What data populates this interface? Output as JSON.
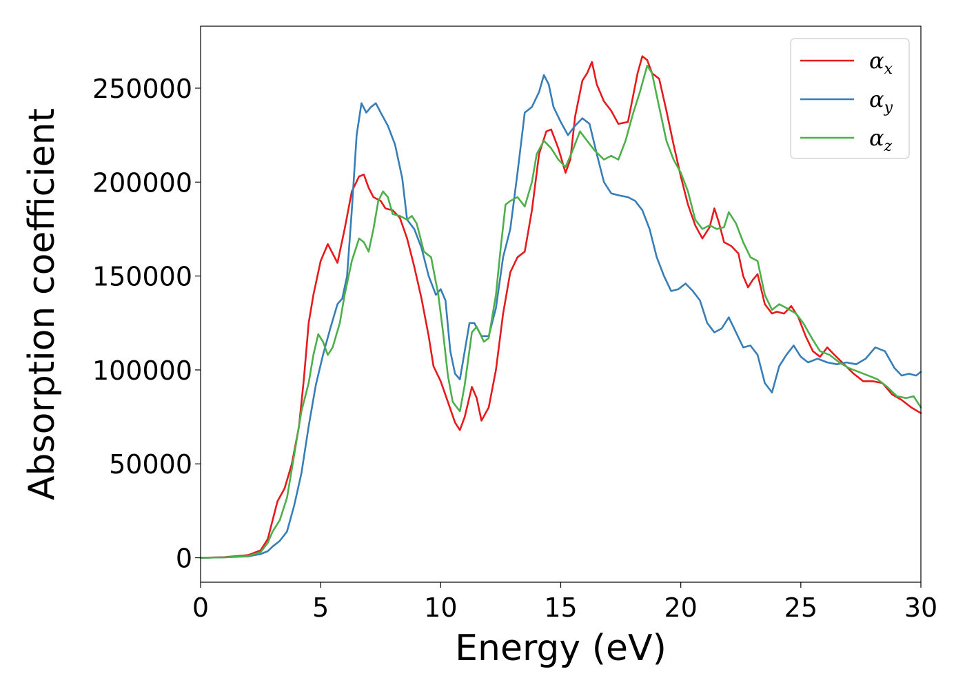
{
  "chart_data": {
    "type": "line",
    "xlabel": "Energy (eV)",
    "ylabel": "Absorption coefficient",
    "xlim": [
      0,
      30
    ],
    "ylim": [
      -13000,
      283000
    ],
    "xticks": [
      0,
      5,
      10,
      15,
      20,
      25,
      30
    ],
    "xtick_labels": [
      "0",
      "5",
      "10",
      "15",
      "20",
      "25",
      "30"
    ],
    "yticks": [
      0,
      50000,
      100000,
      150000,
      200000,
      250000
    ],
    "ytick_labels": [
      "0",
      "50000",
      "100000",
      "150000",
      "200000",
      "250000"
    ],
    "grid": false,
    "legend_position": "top-right",
    "series": [
      {
        "name": "α",
        "name_sub": "x",
        "color": "#e41a1c",
        "points": [
          [
            0,
            0
          ],
          [
            1,
            300
          ],
          [
            2,
            1500
          ],
          [
            2.5,
            4000
          ],
          [
            2.8,
            10000
          ],
          [
            3.0,
            20000
          ],
          [
            3.2,
            30000
          ],
          [
            3.5,
            37000
          ],
          [
            3.8,
            50000
          ],
          [
            4.1,
            70000
          ],
          [
            4.3,
            95000
          ],
          [
            4.5,
            125000
          ],
          [
            4.7,
            140000
          ],
          [
            5.0,
            158000
          ],
          [
            5.3,
            167000
          ],
          [
            5.5,
            162000
          ],
          [
            5.7,
            157000
          ],
          [
            6.0,
            175000
          ],
          [
            6.3,
            195000
          ],
          [
            6.6,
            203000
          ],
          [
            6.8,
            204000
          ],
          [
            7.0,
            197000
          ],
          [
            7.2,
            192000
          ],
          [
            7.5,
            190000
          ],
          [
            7.7,
            186000
          ],
          [
            8.0,
            185000
          ],
          [
            8.3,
            181000
          ],
          [
            8.6,
            170000
          ],
          [
            8.9,
            155000
          ],
          [
            9.2,
            138000
          ],
          [
            9.5,
            118000
          ],
          [
            9.7,
            102000
          ],
          [
            10.0,
            94000
          ],
          [
            10.3,
            83000
          ],
          [
            10.6,
            72000
          ],
          [
            10.8,
            68000
          ],
          [
            11.0,
            75000
          ],
          [
            11.3,
            91000
          ],
          [
            11.5,
            85000
          ],
          [
            11.7,
            73000
          ],
          [
            12.0,
            80000
          ],
          [
            12.3,
            100000
          ],
          [
            12.6,
            130000
          ],
          [
            12.9,
            152000
          ],
          [
            13.2,
            160000
          ],
          [
            13.5,
            163000
          ],
          [
            13.8,
            185000
          ],
          [
            14.1,
            215000
          ],
          [
            14.4,
            227000
          ],
          [
            14.6,
            228000
          ],
          [
            14.9,
            218000
          ],
          [
            15.2,
            205000
          ],
          [
            15.4,
            212000
          ],
          [
            15.6,
            235000
          ],
          [
            15.9,
            254000
          ],
          [
            16.1,
            258000
          ],
          [
            16.3,
            264000
          ],
          [
            16.5,
            252000
          ],
          [
            16.8,
            243000
          ],
          [
            17.1,
            238000
          ],
          [
            17.4,
            231000
          ],
          [
            17.8,
            232000
          ],
          [
            18.0,
            245000
          ],
          [
            18.2,
            258000
          ],
          [
            18.4,
            267000
          ],
          [
            18.6,
            265000
          ],
          [
            18.8,
            258000
          ],
          [
            19.1,
            255000
          ],
          [
            19.4,
            238000
          ],
          [
            19.7,
            220000
          ],
          [
            20.0,
            203000
          ],
          [
            20.3,
            188000
          ],
          [
            20.6,
            177000
          ],
          [
            20.9,
            170000
          ],
          [
            21.2,
            176000
          ],
          [
            21.4,
            186000
          ],
          [
            21.6,
            178000
          ],
          [
            21.8,
            168000
          ],
          [
            22.1,
            166000
          ],
          [
            22.4,
            162000
          ],
          [
            22.6,
            150000
          ],
          [
            22.8,
            144000
          ],
          [
            23.0,
            148000
          ],
          [
            23.2,
            151000
          ],
          [
            23.5,
            135000
          ],
          [
            23.8,
            130000
          ],
          [
            24.0,
            131000
          ],
          [
            24.3,
            130000
          ],
          [
            24.6,
            134000
          ],
          [
            24.9,
            128000
          ],
          [
            25.2,
            118000
          ],
          [
            25.5,
            110000
          ],
          [
            25.8,
            107000
          ],
          [
            26.1,
            112000
          ],
          [
            26.4,
            108000
          ],
          [
            26.8,
            103000
          ],
          [
            27.2,
            98000
          ],
          [
            27.6,
            94000
          ],
          [
            28.0,
            94000
          ],
          [
            28.4,
            93000
          ],
          [
            28.8,
            87000
          ],
          [
            29.2,
            84000
          ],
          [
            29.6,
            80000
          ],
          [
            30.0,
            77000
          ]
        ]
      },
      {
        "name": "α",
        "name_sub": "y",
        "color": "#377eb8",
        "points": [
          [
            0,
            0
          ],
          [
            1,
            200
          ],
          [
            2,
            800
          ],
          [
            2.5,
            2000
          ],
          [
            2.8,
            3500
          ],
          [
            3.0,
            6000
          ],
          [
            3.3,
            9000
          ],
          [
            3.6,
            14000
          ],
          [
            3.9,
            28000
          ],
          [
            4.2,
            45000
          ],
          [
            4.5,
            70000
          ],
          [
            4.8,
            92000
          ],
          [
            5.1,
            108000
          ],
          [
            5.4,
            122000
          ],
          [
            5.7,
            135000
          ],
          [
            5.9,
            138000
          ],
          [
            6.1,
            150000
          ],
          [
            6.3,
            185000
          ],
          [
            6.5,
            225000
          ],
          [
            6.7,
            242000
          ],
          [
            6.9,
            237000
          ],
          [
            7.1,
            240000
          ],
          [
            7.3,
            242000
          ],
          [
            7.5,
            237000
          ],
          [
            7.8,
            230000
          ],
          [
            8.1,
            220000
          ],
          [
            8.4,
            202000
          ],
          [
            8.6,
            180000
          ],
          [
            8.9,
            175000
          ],
          [
            9.2,
            165000
          ],
          [
            9.5,
            150000
          ],
          [
            9.8,
            140000
          ],
          [
            10.0,
            143000
          ],
          [
            10.2,
            137000
          ],
          [
            10.4,
            110000
          ],
          [
            10.6,
            98000
          ],
          [
            10.8,
            95000
          ],
          [
            11.0,
            110000
          ],
          [
            11.2,
            125000
          ],
          [
            11.4,
            125000
          ],
          [
            11.7,
            118000
          ],
          [
            12.0,
            118000
          ],
          [
            12.3,
            133000
          ],
          [
            12.6,
            160000
          ],
          [
            12.9,
            175000
          ],
          [
            13.2,
            205000
          ],
          [
            13.5,
            237000
          ],
          [
            13.8,
            240000
          ],
          [
            14.1,
            248000
          ],
          [
            14.3,
            257000
          ],
          [
            14.5,
            252000
          ],
          [
            14.7,
            240000
          ],
          [
            15.0,
            232000
          ],
          [
            15.3,
            225000
          ],
          [
            15.6,
            230000
          ],
          [
            15.9,
            234000
          ],
          [
            16.2,
            231000
          ],
          [
            16.5,
            215000
          ],
          [
            16.8,
            200000
          ],
          [
            17.1,
            194000
          ],
          [
            17.4,
            193000
          ],
          [
            17.8,
            192000
          ],
          [
            18.1,
            190000
          ],
          [
            18.4,
            185000
          ],
          [
            18.7,
            175000
          ],
          [
            19.0,
            160000
          ],
          [
            19.3,
            150000
          ],
          [
            19.6,
            142000
          ],
          [
            19.9,
            143000
          ],
          [
            20.2,
            146000
          ],
          [
            20.5,
            142000
          ],
          [
            20.8,
            137000
          ],
          [
            21.1,
            125000
          ],
          [
            21.4,
            120000
          ],
          [
            21.7,
            122000
          ],
          [
            22.0,
            128000
          ],
          [
            22.3,
            120000
          ],
          [
            22.6,
            112000
          ],
          [
            22.9,
            113000
          ],
          [
            23.2,
            108000
          ],
          [
            23.5,
            93000
          ],
          [
            23.8,
            88000
          ],
          [
            24.1,
            102000
          ],
          [
            24.4,
            108000
          ],
          [
            24.7,
            113000
          ],
          [
            25.0,
            107000
          ],
          [
            25.3,
            104000
          ],
          [
            25.7,
            106000
          ],
          [
            26.1,
            104000
          ],
          [
            26.5,
            103000
          ],
          [
            26.9,
            104000
          ],
          [
            27.3,
            103000
          ],
          [
            27.7,
            106000
          ],
          [
            28.1,
            112000
          ],
          [
            28.5,
            110000
          ],
          [
            28.9,
            101000
          ],
          [
            29.2,
            97000
          ],
          [
            29.5,
            98000
          ],
          [
            29.8,
            97000
          ],
          [
            30.0,
            99000
          ]
        ]
      },
      {
        "name": "α",
        "name_sub": "z",
        "color": "#4daf4a",
        "points": [
          [
            0,
            0
          ],
          [
            1,
            200
          ],
          [
            2,
            1000
          ],
          [
            2.5,
            3000
          ],
          [
            2.8,
            8000
          ],
          [
            3.0,
            14000
          ],
          [
            3.3,
            20000
          ],
          [
            3.6,
            32000
          ],
          [
            3.9,
            55000
          ],
          [
            4.2,
            78000
          ],
          [
            4.5,
            93000
          ],
          [
            4.7,
            108000
          ],
          [
            4.9,
            119000
          ],
          [
            5.1,
            115000
          ],
          [
            5.3,
            108000
          ],
          [
            5.5,
            112000
          ],
          [
            5.8,
            125000
          ],
          [
            6.0,
            140000
          ],
          [
            6.3,
            158000
          ],
          [
            6.6,
            170000
          ],
          [
            6.8,
            168000
          ],
          [
            7.0,
            163000
          ],
          [
            7.2,
            175000
          ],
          [
            7.4,
            190000
          ],
          [
            7.6,
            195000
          ],
          [
            7.8,
            192000
          ],
          [
            8.0,
            183000
          ],
          [
            8.3,
            182000
          ],
          [
            8.6,
            180000
          ],
          [
            8.8,
            182000
          ],
          [
            9.0,
            178000
          ],
          [
            9.3,
            163000
          ],
          [
            9.6,
            160000
          ],
          [
            9.9,
            140000
          ],
          [
            10.1,
            120000
          ],
          [
            10.3,
            97000
          ],
          [
            10.5,
            83000
          ],
          [
            10.8,
            78000
          ],
          [
            11.0,
            92000
          ],
          [
            11.3,
            120000
          ],
          [
            11.5,
            123000
          ],
          [
            11.8,
            115000
          ],
          [
            12.0,
            117000
          ],
          [
            12.3,
            140000
          ],
          [
            12.5,
            165000
          ],
          [
            12.7,
            188000
          ],
          [
            12.9,
            190000
          ],
          [
            13.2,
            192000
          ],
          [
            13.5,
            187000
          ],
          [
            13.8,
            200000
          ],
          [
            14.0,
            215000
          ],
          [
            14.3,
            222000
          ],
          [
            14.6,
            218000
          ],
          [
            14.9,
            212000
          ],
          [
            15.2,
            208000
          ],
          [
            15.5,
            217000
          ],
          [
            15.8,
            227000
          ],
          [
            16.1,
            222000
          ],
          [
            16.4,
            217000
          ],
          [
            16.8,
            212000
          ],
          [
            17.1,
            214000
          ],
          [
            17.4,
            212000
          ],
          [
            17.7,
            222000
          ],
          [
            18.0,
            236000
          ],
          [
            18.3,
            248000
          ],
          [
            18.6,
            262000
          ],
          [
            18.8,
            258000
          ],
          [
            19.1,
            240000
          ],
          [
            19.4,
            222000
          ],
          [
            19.7,
            212000
          ],
          [
            20.0,
            205000
          ],
          [
            20.3,
            195000
          ],
          [
            20.6,
            180000
          ],
          [
            20.9,
            175000
          ],
          [
            21.2,
            177000
          ],
          [
            21.5,
            175000
          ],
          [
            21.8,
            176000
          ],
          [
            22.0,
            184000
          ],
          [
            22.3,
            178000
          ],
          [
            22.6,
            168000
          ],
          [
            22.9,
            160000
          ],
          [
            23.2,
            158000
          ],
          [
            23.5,
            140000
          ],
          [
            23.8,
            132000
          ],
          [
            24.1,
            135000
          ],
          [
            24.4,
            133000
          ],
          [
            24.8,
            130000
          ],
          [
            25.1,
            125000
          ],
          [
            25.5,
            116000
          ],
          [
            25.8,
            110000
          ],
          [
            26.2,
            108000
          ],
          [
            26.6,
            104000
          ],
          [
            27.0,
            101000
          ],
          [
            27.4,
            99000
          ],
          [
            27.8,
            97000
          ],
          [
            28.2,
            95000
          ],
          [
            28.6,
            91000
          ],
          [
            29.0,
            86000
          ],
          [
            29.4,
            85000
          ],
          [
            29.7,
            86000
          ],
          [
            30.0,
            80000
          ]
        ]
      }
    ]
  }
}
